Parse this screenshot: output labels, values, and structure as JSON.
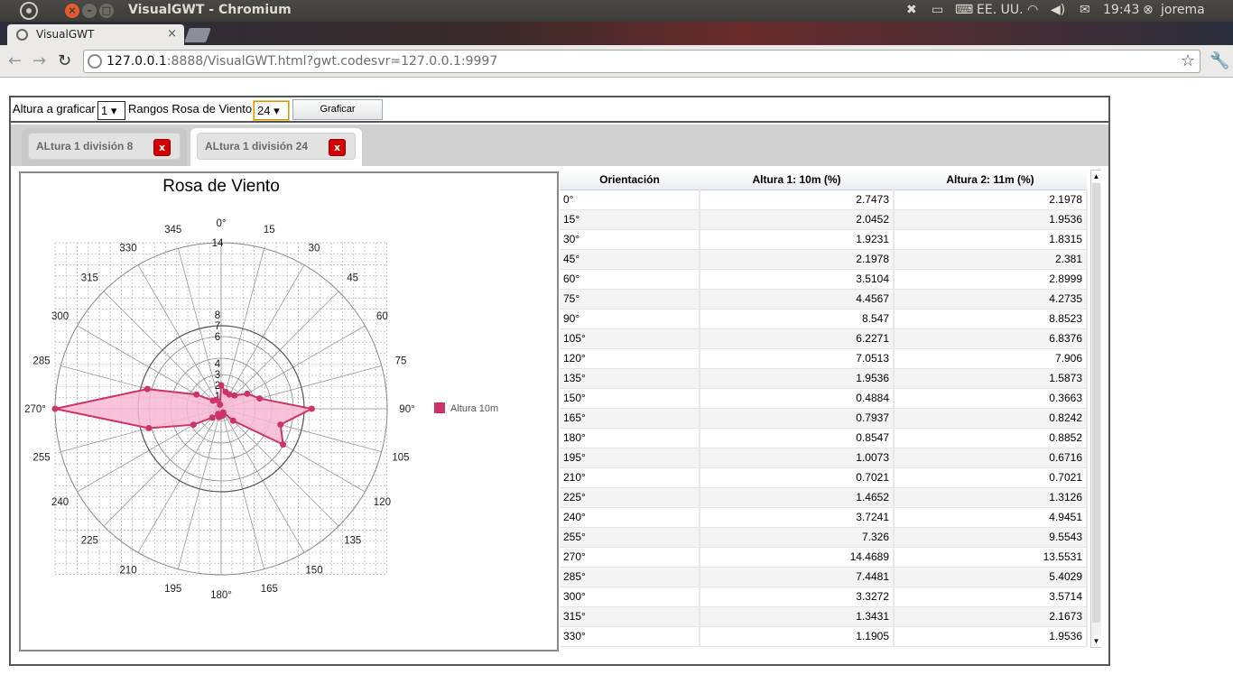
{
  "os": {
    "window_title": "VisualGWT - Chromium",
    "keyboard": "EE. UU.",
    "time": "19:43",
    "user": "jorema"
  },
  "browser": {
    "tab_title": "VisualGWT",
    "url_host": "127.0.0.1",
    "url_rest": ":8888/VisualGWT.html?gwt.codesvr=127.0.0.1:9997"
  },
  "controls": {
    "altura_label": "Altura a graficar",
    "altura_value": "1",
    "rangos_label": "Rangos Rosa de Viento",
    "rangos_value": "24",
    "graficar_label": "Graficar"
  },
  "tabs": [
    {
      "label": "ALtura 1 división 8",
      "close": "x",
      "selected": false
    },
    {
      "label": "ALtura 1 división 24",
      "close": "x",
      "selected": true
    }
  ],
  "chart_data": {
    "type": "radar",
    "title": "Rosa de Viento",
    "angles": [
      0,
      15,
      30,
      45,
      60,
      75,
      90,
      105,
      120,
      135,
      150,
      165,
      180,
      195,
      210,
      225,
      240,
      255,
      270,
      285,
      300,
      315,
      330,
      345
    ],
    "angle_labels": [
      "0°",
      "15",
      "30",
      "45",
      "60",
      "75",
      "90°",
      "105",
      "120",
      "135",
      "150",
      "165",
      "180°",
      "195",
      "210",
      "225",
      "240",
      "255",
      "270°",
      "285",
      "300",
      "315",
      "330",
      "345"
    ],
    "radial_ticks": [
      "0",
      "1",
      "2",
      "3",
      "4",
      "6",
      "7",
      "8",
      "14"
    ],
    "rlim": [
      0,
      14
    ],
    "series": [
      {
        "name": "Altura 10m",
        "color": "#cc3366",
        "values": [
          2.7473,
          2.0452,
          1.9231,
          2.1978,
          3.5104,
          4.4567,
          8.547,
          6.2271,
          7.0513,
          1.9536,
          0.4884,
          0.7937,
          0.8547,
          1.0073,
          0.7021,
          1.4652,
          3.7241,
          7.326,
          14.4689,
          7.4481,
          3.3272,
          1.3431,
          1.1905,
          0.5
        ]
      }
    ],
    "legend": "right"
  },
  "table": {
    "columns": [
      "Orientación",
      "Altura 1: 10m (%)",
      "Altura 2: 11m (%)"
    ],
    "rows": [
      [
        "0°",
        "2.7473",
        "2.1978"
      ],
      [
        "15°",
        "2.0452",
        "1.9536"
      ],
      [
        "30°",
        "1.9231",
        "1.8315"
      ],
      [
        "45°",
        "2.1978",
        "2.381"
      ],
      [
        "60°",
        "3.5104",
        "2.8999"
      ],
      [
        "75°",
        "4.4567",
        "4.2735"
      ],
      [
        "90°",
        "8.547",
        "8.8523"
      ],
      [
        "105°",
        "6.2271",
        "6.8376"
      ],
      [
        "120°",
        "7.0513",
        "7.906"
      ],
      [
        "135°",
        "1.9536",
        "1.5873"
      ],
      [
        "150°",
        "0.4884",
        "0.3663"
      ],
      [
        "165°",
        "0.7937",
        "0.8242"
      ],
      [
        "180°",
        "0.8547",
        "0.8852"
      ],
      [
        "195°",
        "1.0073",
        "0.6716"
      ],
      [
        "210°",
        "0.7021",
        "0.7021"
      ],
      [
        "225°",
        "1.4652",
        "1.3126"
      ],
      [
        "240°",
        "3.7241",
        "4.9451"
      ],
      [
        "255°",
        "7.326",
        "9.5543"
      ],
      [
        "270°",
        "14.4689",
        "13.5531"
      ],
      [
        "285°",
        "7.4481",
        "5.4029"
      ],
      [
        "300°",
        "3.3272",
        "3.5714"
      ],
      [
        "315°",
        "1.3431",
        "2.1673"
      ],
      [
        "330°",
        "1.1905",
        "1.9536"
      ]
    ]
  }
}
